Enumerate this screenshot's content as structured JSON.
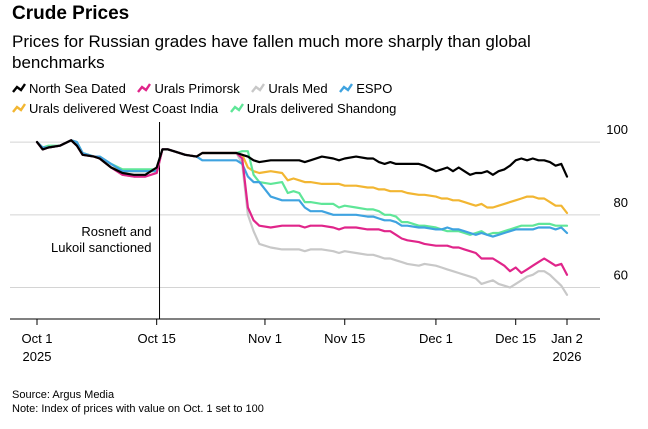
{
  "title": "Crude Prices",
  "subtitle": "Prices for Russian grades have fallen much more sharply than global benchmarks",
  "footer": {
    "source": "Source: Argus Media",
    "note": "Note: Index of prices with value on Oct. 1 set to 100"
  },
  "chart_data": {
    "type": "line",
    "title": "Crude Prices",
    "ylabel": "",
    "xlabel": "",
    "ylim": [
      53,
      108
    ],
    "xlim": [
      0,
      93
    ],
    "yticks": [
      100,
      80,
      60
    ],
    "xticks": [
      {
        "day": 0,
        "label": "Oct 1",
        "sub": "2025"
      },
      {
        "day": 21,
        "label": "Oct 15",
        "sub": ""
      },
      {
        "day": 40,
        "label": "Nov 1",
        "sub": ""
      },
      {
        "day": 54,
        "label": "Nov 15",
        "sub": ""
      },
      {
        "day": 70,
        "label": "Dec 1",
        "sub": ""
      },
      {
        "day": 84,
        "label": "Dec 15",
        "sub": ""
      },
      {
        "day": 93,
        "label": "Jan 2",
        "sub": "2026"
      }
    ],
    "annotation": {
      "day": 21.5,
      "text_line1": "Rosneft and",
      "text_line2": "Lukoil sanctioned"
    },
    "x": [
      0,
      1,
      2,
      4,
      6,
      7,
      8,
      10,
      11,
      13,
      15,
      17,
      19,
      21,
      22,
      23,
      24,
      26,
      28,
      29,
      30,
      31,
      32,
      33,
      35,
      36,
      37,
      38,
      39,
      41,
      43,
      44,
      45,
      46,
      47,
      48,
      50,
      52,
      53,
      54,
      56,
      58,
      59,
      60,
      61,
      62,
      63,
      64,
      65,
      67,
      68,
      70,
      71,
      72,
      73,
      74,
      75,
      76,
      77,
      78,
      79,
      80,
      81,
      82,
      83,
      84,
      85,
      86,
      87,
      88,
      89,
      90,
      91,
      92,
      93
    ],
    "series": [
      {
        "name": "North Sea Dated",
        "color": "#000000",
        "values": [
          100,
          98,
          98.5,
          99,
          100.5,
          99,
          96.5,
          96,
          95.5,
          93,
          91.5,
          91,
          91,
          93,
          98,
          98,
          97.5,
          96.5,
          96,
          97,
          97,
          97,
          97,
          97,
          97,
          96.5,
          96,
          95,
          94.5,
          95,
          95,
          95,
          95,
          95,
          94.5,
          95,
          96,
          95.5,
          95,
          95.5,
          96,
          95.5,
          95.5,
          94.5,
          94,
          94.5,
          94,
          94,
          94,
          94,
          93.5,
          92,
          92.5,
          93,
          92,
          93,
          92,
          91,
          91.5,
          91.5,
          92,
          91,
          92,
          92.5,
          93.5,
          95,
          95.5,
          95,
          95.5,
          95,
          95,
          94.5,
          93.5,
          94,
          90.5
        ]
      },
      {
        "name": "Urals Primorsk",
        "color": "#e0258a",
        "values": [
          100,
          98,
          98.5,
          99,
          100.5,
          99,
          96.5,
          96,
          95.5,
          93,
          91,
          90.5,
          90.5,
          91.5,
          98,
          98,
          97.5,
          96.5,
          96,
          97,
          97,
          97,
          97,
          97,
          97,
          95.5,
          82,
          78.5,
          77,
          76.5,
          77,
          77,
          77,
          77,
          76.5,
          77,
          77,
          76.5,
          76,
          76.5,
          76.5,
          76,
          76,
          76,
          75.5,
          75.5,
          74.5,
          73.5,
          73,
          72.5,
          72,
          71.5,
          71.5,
          71.5,
          71,
          71,
          70.5,
          70,
          69.5,
          68,
          68,
          68,
          67,
          66,
          64.5,
          65.5,
          64,
          65,
          66,
          67,
          68,
          67,
          66,
          66.5,
          63.5
        ]
      },
      {
        "name": "Urals Med",
        "color": "#c8c8c8",
        "values": [
          100,
          98,
          98.5,
          99,
          100.5,
          99,
          96.5,
          96,
          95.5,
          93,
          91,
          90.5,
          90.5,
          91.5,
          98,
          98,
          97.5,
          96.5,
          96,
          97,
          97,
          97,
          97,
          97,
          97,
          94,
          80,
          75.5,
          72,
          71,
          70.5,
          70.5,
          70.5,
          70.5,
          70,
          70.5,
          70.5,
          70,
          69.5,
          70,
          69.5,
          69,
          69,
          68.5,
          68,
          68,
          67.5,
          67,
          66.5,
          66,
          66.5,
          66,
          65.5,
          65,
          64.5,
          64,
          63.5,
          63,
          62.5,
          61,
          61.5,
          62,
          61,
          60.5,
          60,
          61,
          62,
          63,
          63.5,
          64.5,
          64.5,
          63.5,
          62,
          60.5,
          58
        ]
      },
      {
        "name": "ESPO",
        "color": "#3fa3e0",
        "values": [
          100,
          98.5,
          98.5,
          99,
          100.5,
          100,
          97,
          96,
          96,
          94,
          92,
          92,
          92,
          92,
          98,
          98,
          97.5,
          96.5,
          96,
          95,
          95,
          95,
          95,
          95,
          95,
          94,
          90.5,
          89,
          89,
          85,
          84,
          84,
          84,
          84,
          82,
          81,
          81,
          80,
          80,
          80,
          80,
          79.5,
          79.5,
          79,
          78.5,
          78.5,
          78,
          77,
          77,
          76.5,
          76.5,
          76,
          76,
          76.5,
          76,
          76,
          75.5,
          75,
          74.5,
          75,
          74.5,
          74,
          74.5,
          75,
          75.5,
          76,
          76,
          76,
          76,
          76.5,
          76.5,
          76.5,
          76,
          76.5,
          75
        ]
      },
      {
        "name": "Urals delivered West Coast India",
        "color": "#f2b632",
        "values": [
          100,
          98.5,
          98.5,
          99,
          100.5,
          99.5,
          97,
          96,
          95.5,
          93,
          92,
          92,
          92,
          92,
          98,
          98,
          97.5,
          96.5,
          96,
          97,
          97,
          97,
          97,
          97,
          97,
          96.5,
          93,
          92,
          91.5,
          92,
          91.5,
          89.5,
          90,
          89.5,
          89,
          89,
          88.5,
          88.5,
          88.5,
          88,
          88,
          87.5,
          87.5,
          87,
          87,
          86.5,
          86.5,
          86.5,
          86,
          85.5,
          85.5,
          85,
          84.5,
          84.5,
          84,
          84,
          83.5,
          83,
          82.5,
          83,
          82,
          82,
          82.5,
          83,
          83.5,
          84,
          84.5,
          85,
          85,
          84.5,
          84.5,
          83.5,
          82.5,
          82.5,
          80.5
        ]
      },
      {
        "name": "Urals delivered Shandong",
        "color": "#5fe698",
        "values": [
          100,
          98.5,
          99,
          99,
          100.5,
          100,
          97,
          96,
          96,
          94,
          92.5,
          92.5,
          92.5,
          92.5,
          98,
          98,
          97.5,
          96.5,
          96,
          97,
          97,
          97,
          97,
          97,
          97,
          97.5,
          97.5,
          91,
          89,
          88.5,
          89,
          86,
          86.5,
          86,
          83.5,
          83.5,
          83,
          83,
          82,
          82.5,
          82,
          81.5,
          81.5,
          81,
          80,
          80,
          79.5,
          78,
          78,
          77,
          77,
          76.5,
          76,
          75.5,
          75.5,
          75.5,
          75,
          74.5,
          75,
          75.5,
          74.5,
          75,
          75,
          75.5,
          76,
          76.5,
          77,
          77,
          77,
          77.5,
          77.5,
          77.5,
          77,
          77,
          77
        ]
      }
    ]
  }
}
